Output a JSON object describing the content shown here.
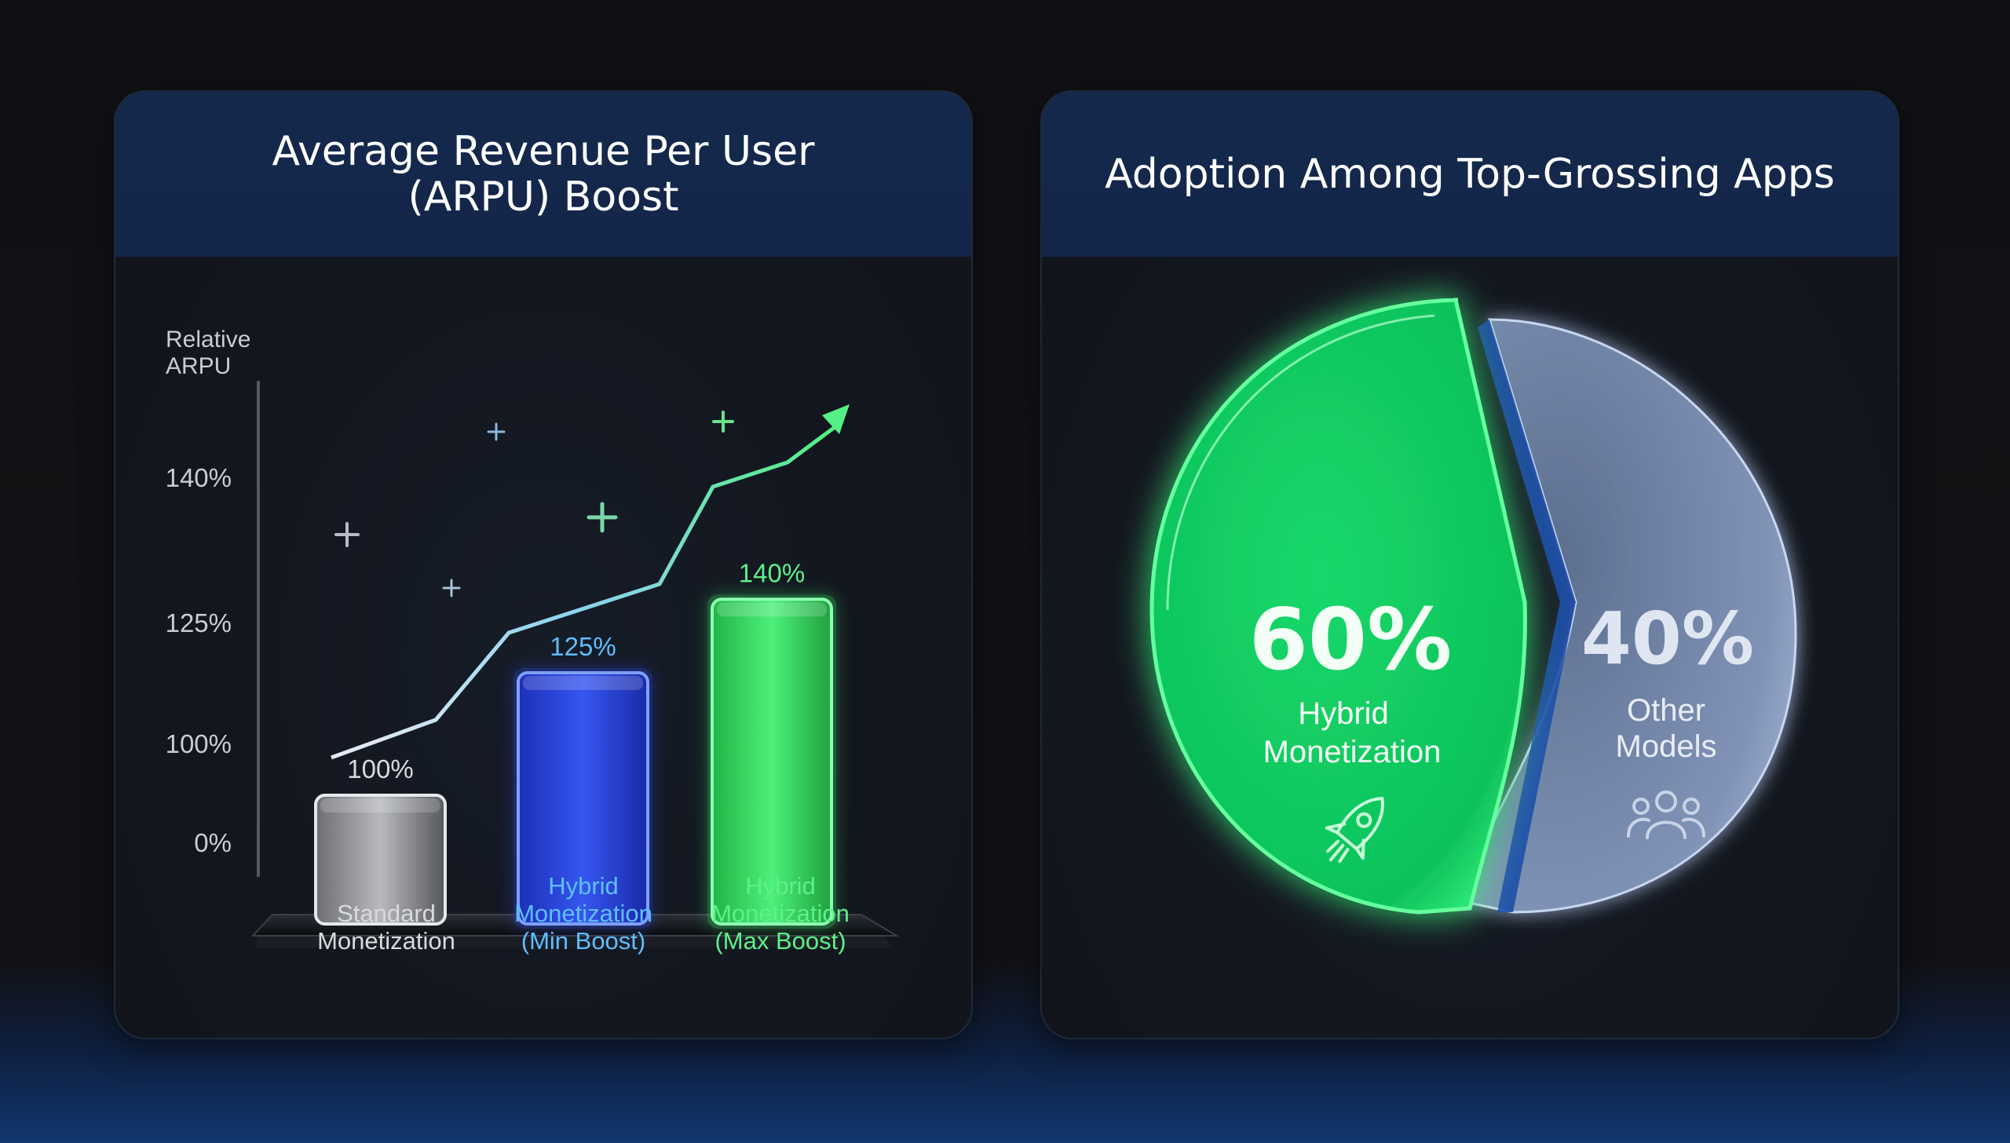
{
  "charts": {
    "arpu_title": "Average Revenue Per User (ARPU) Boost",
    "adoption_title": "Adoption Among Top-Grossing Apps"
  },
  "chart_data": [
    {
      "type": "bar",
      "title": "Average Revenue Per User (ARPU) Boost",
      "ylabel": "Relative ARPU",
      "yticks": [
        "0%",
        "100%",
        "125%",
        "140%"
      ],
      "categories": [
        "Standard Monetization",
        "Hybrid Monetization (Min Boost)",
        "Hybrid Monetization (Max Boost)"
      ],
      "values": [
        100,
        125,
        140
      ],
      "value_labels": [
        "100%",
        "125%",
        "140%"
      ],
      "colors": [
        "#9a9ca2",
        "#2a48e6",
        "#36e060"
      ],
      "trend_arrow": true
    },
    {
      "type": "pie",
      "title": "Adoption Among Top-Grossing Apps",
      "slices": [
        {
          "label": "Hybrid Monetization",
          "value": 60,
          "value_label": "60%",
          "color": "#12e068",
          "icon": "rocket-icon"
        },
        {
          "label": "Other Models",
          "value": 40,
          "value_label": "40%",
          "color": "#8ea4c9",
          "icon": "users-icon"
        }
      ]
    }
  ]
}
